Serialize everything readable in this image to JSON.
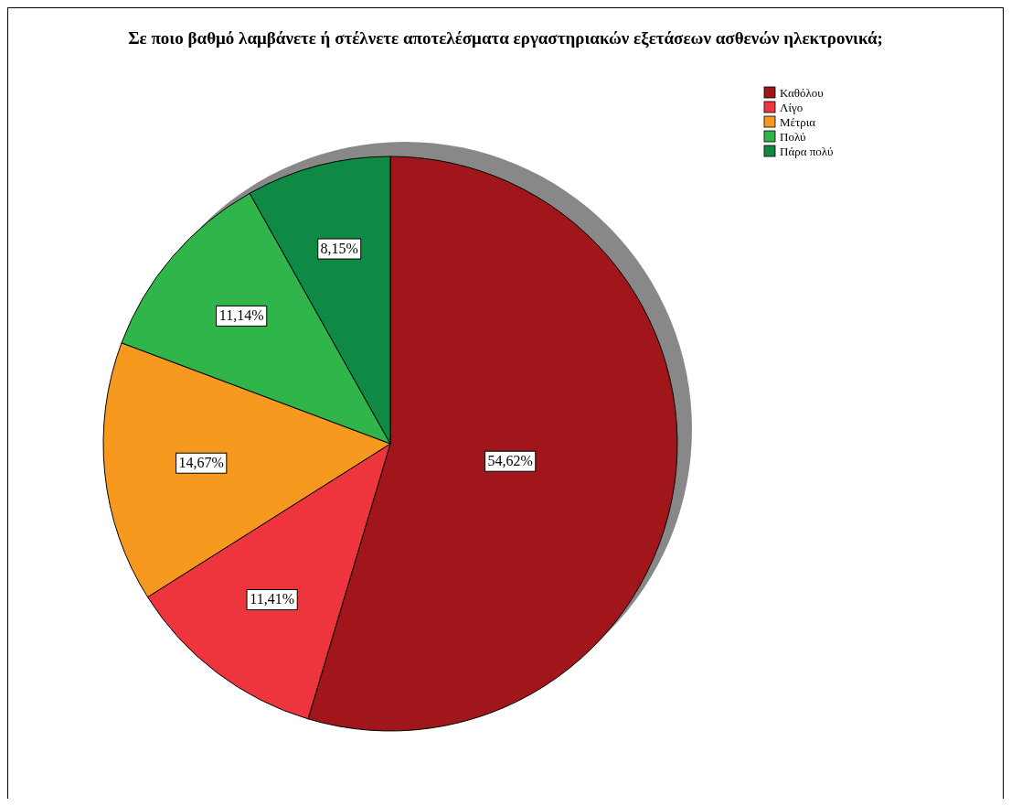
{
  "chart_data": {
    "type": "pie",
    "title": "Σε ποιο βαθμό λαμβάνετε ή στέλνετε αποτελέσματα εργαστηριακών εξετάσεων ασθενών ηλεκτρονικά;",
    "categories": [
      "Καθόλου",
      "Λίγο",
      "Μέτρια",
      "Πολύ",
      "Πάρα πολύ"
    ],
    "values": [
      54.62,
      11.41,
      14.67,
      11.14,
      8.15
    ],
    "value_labels": [
      "54,62%",
      "11,41%",
      "14,67%",
      "11,14%",
      "8,15%"
    ],
    "colors": [
      "#a0161a",
      "#ee343c",
      "#f7991e",
      "#2fb54a",
      "#0e8a44"
    ],
    "legend": "top right"
  }
}
